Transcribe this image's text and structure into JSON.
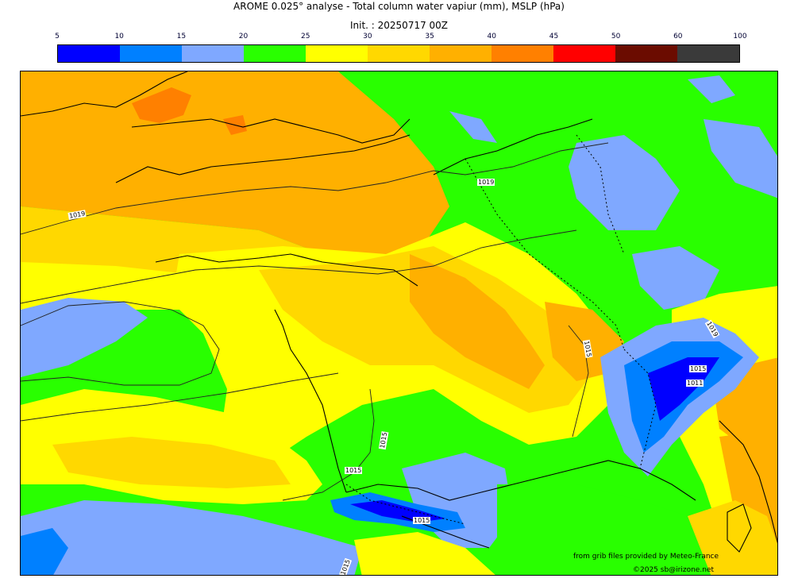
{
  "title": "AROME 0.025° analyse - Total column water vapiur (mm), MSLP (hPa)",
  "subtitle": "Init. : 20250717 00Z",
  "colorbar": {
    "ticks": [
      "5",
      "10",
      "15",
      "20",
      "25",
      "30",
      "35",
      "40",
      "45",
      "50",
      "60",
      "100"
    ],
    "colors": [
      "#0000ff",
      "#0080ff",
      "#7fa8ff",
      "#29ff00",
      "#ffff00",
      "#ffd800",
      "#ffb000",
      "#ff8000",
      "#ff0000",
      "#6b0c00",
      "#3a3a3a"
    ]
  },
  "isobars": [
    "1019",
    "1019",
    "1019",
    "1015",
    "1015",
    "1015",
    "1015",
    "1015",
    "1011",
    "1015",
    "1015",
    "1015"
  ],
  "credits": {
    "line1": "from grib files provided by Meteo-France",
    "line2": "©2025 sb@irizone.net"
  },
  "palette": {
    "green": "#29ff00",
    "yellow": "#ffff00",
    "gold": "#ffd800",
    "orange": "#ffb000",
    "darkorange": "#ff8000",
    "lightblue": "#7fa8ff",
    "blue": "#0080ff",
    "deepblue": "#0000ff"
  }
}
